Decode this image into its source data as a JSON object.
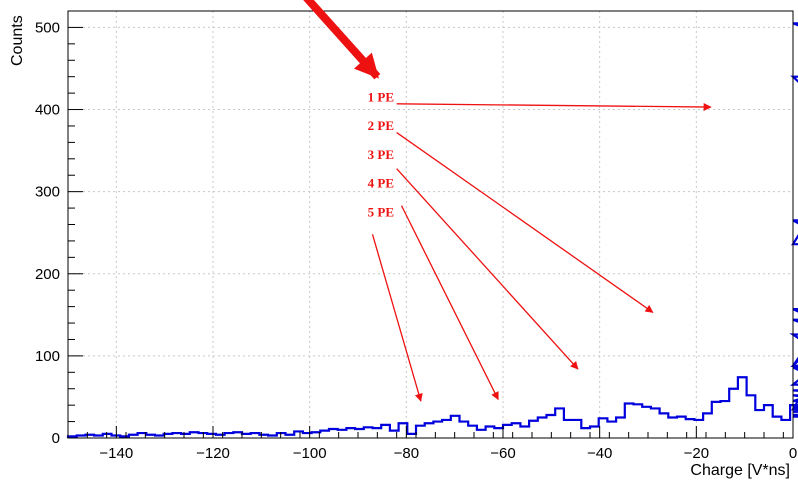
{
  "chart_data": {
    "type": "histogram",
    "title": "",
    "xlabel": "Charge [V*ns]",
    "ylabel": "Counts",
    "xlim": [
      -150,
      0
    ],
    "ylim": [
      0,
      520
    ],
    "grid": true,
    "bin_width": 1.8,
    "bin_edges_start": -150,
    "x_ticks": [
      -140,
      -120,
      -100,
      -80,
      -60,
      -40,
      -20,
      0
    ],
    "y_ticks": [
      0,
      100,
      200,
      300,
      400,
      500
    ],
    "x_tick_labels": [
      "−140",
      "−120",
      "−100",
      "−80",
      "−60",
      "−40",
      "−20",
      "0"
    ],
    "y_tick_labels": [
      "0",
      "100",
      "200",
      "300",
      "400",
      "500"
    ],
    "series": [
      {
        "color": "#0000dd",
        "values": [
          2,
          3,
          4,
          3,
          5,
          3,
          2,
          4,
          6,
          4,
          3,
          5,
          6,
          5,
          7,
          6,
          5,
          4,
          6,
          7,
          5,
          6,
          4,
          3,
          6,
          4,
          8,
          6,
          7,
          9,
          11,
          10,
          12,
          11,
          13,
          12,
          16,
          9,
          18,
          5,
          15,
          18,
          20,
          22,
          27,
          20,
          15,
          10,
          14,
          12,
          16,
          18,
          14,
          21,
          25,
          28,
          36,
          22,
          22,
          12,
          14,
          24,
          20,
          25,
          42,
          41,
          38,
          36,
          30,
          25,
          26,
          23,
          22,
          30,
          44,
          45,
          60,
          74,
          52,
          34,
          40,
          26,
          22,
          40,
          35,
          65,
          88,
          144,
          126,
          86,
          52,
          40,
          32,
          38,
          28,
          35,
          45,
          88,
          236,
          505,
          440,
          265,
          157,
          58,
          40,
          35,
          40,
          26
        ]
      }
    ],
    "annotations": [
      {
        "label": "1 PE",
        "text_at": [
          -88,
          410
        ],
        "arrow_from": [
          -82,
          407
        ],
        "arrow_to": [
          -17,
          403
        ]
      },
      {
        "label": "2 PE",
        "text_at": [
          -88,
          375
        ],
        "arrow_from": [
          -82,
          372
        ],
        "arrow_to": [
          -29,
          153
        ]
      },
      {
        "label": "3 PE",
        "text_at": [
          -88,
          340
        ],
        "arrow_from": [
          -82,
          328
        ],
        "arrow_to": [
          -44.5,
          84
        ]
      },
      {
        "label": "4 PE",
        "text_at": [
          -88,
          305
        ],
        "arrow_from": [
          -81,
          283
        ],
        "arrow_to": [
          -61,
          47
        ]
      },
      {
        "label": "5 PE",
        "text_at": [
          -88,
          270
        ],
        "arrow_from": [
          -87,
          248
        ],
        "arrow_to": [
          -77,
          45
        ]
      }
    ],
    "big_arrow": {
      "from": [
        -102,
        545
      ],
      "to": [
        -86,
        440
      ]
    }
  }
}
